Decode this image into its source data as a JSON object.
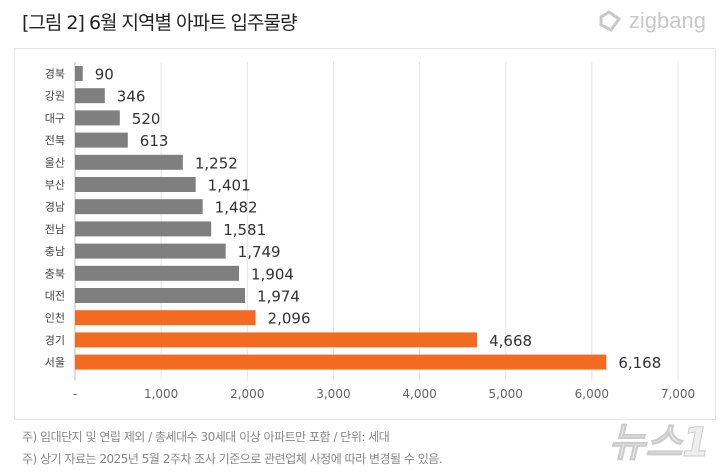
{
  "title": "[그림 2] 6월 지역별 아파트 입주물량",
  "logo": "zigbang",
  "watermark": "뉴스1",
  "notes": [
    "주) 임대단지 및 연립 제외 / 총세대수 30세대 이상 아파트만 포함 / 단위: 세대",
    "주) 상기 자료는 2025년 5월 2주차 조사 기준으로 관련업체 사정에 따라 변경될 수 있음."
  ],
  "chart_data": {
    "type": "bar",
    "orientation": "horizontal",
    "categories": [
      "경북",
      "강원",
      "대구",
      "전북",
      "울산",
      "부산",
      "경남",
      "전남",
      "충남",
      "충북",
      "대전",
      "인천",
      "경기",
      "서울"
    ],
    "values": [
      90,
      346,
      520,
      613,
      1252,
      1401,
      1482,
      1581,
      1749,
      1904,
      1974,
      2096,
      4668,
      6168
    ],
    "data_labels": [
      "90",
      "346",
      "520",
      "613",
      "1,252",
      "1,401",
      "1,482",
      "1,581",
      "1,749",
      "1,904",
      "1,974",
      "2,096",
      "4,668",
      "6,168"
    ],
    "highlighted": [
      "인천",
      "경기",
      "서울"
    ],
    "colors": {
      "default": "#7f7f7f",
      "highlight": "#f26b21"
    },
    "xlim": [
      0,
      7000
    ],
    "xticks": [
      "-",
      "1,000",
      "2,000",
      "3,000",
      "4,000",
      "5,000",
      "6,000",
      "7,000"
    ],
    "grid": true
  }
}
